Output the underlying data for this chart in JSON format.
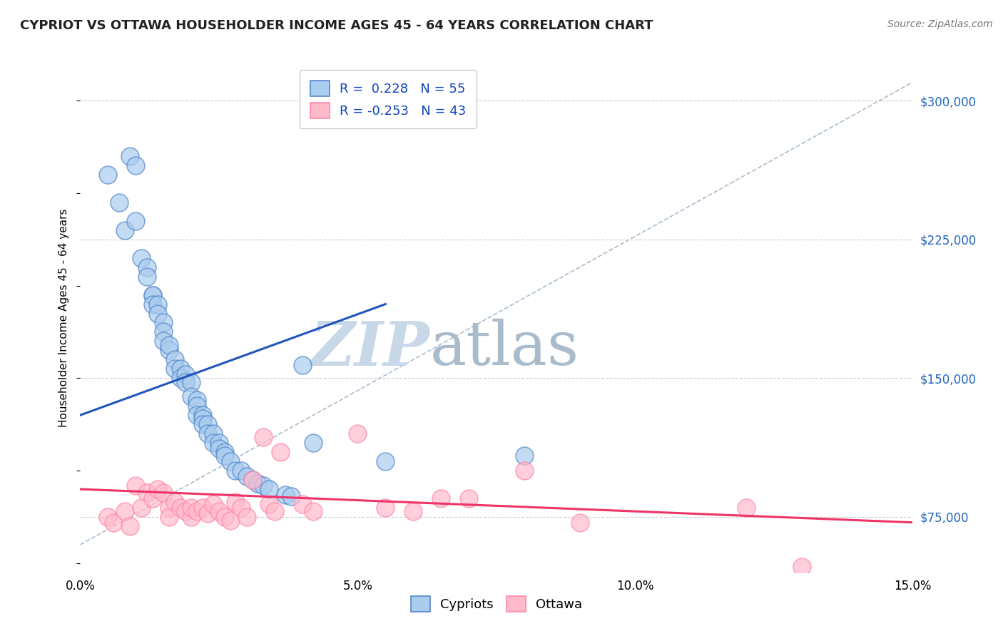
{
  "title": "CYPRIOT VS OTTAWA HOUSEHOLDER INCOME AGES 45 - 64 YEARS CORRELATION CHART",
  "source": "Source: ZipAtlas.com",
  "ylabel": "Householder Income Ages 45 - 64 years",
  "xmin": 0.0,
  "xmax": 0.15,
  "ymin": 45000,
  "ymax": 320000,
  "yticks": [
    75000,
    150000,
    225000,
    300000
  ],
  "ytick_labels": [
    "$75,000",
    "$150,000",
    "$225,000",
    "$300,000"
  ],
  "xticks": [
    0.0,
    0.05,
    0.1,
    0.15
  ],
  "xtick_labels": [
    "0.0%",
    "5.0%",
    "10.0%",
    "15.0%"
  ],
  "legend_r1": "R =  0.228",
  "legend_n1": "N = 55",
  "legend_r2": "R = -0.253",
  "legend_n2": "N = 43",
  "blue_face": "#AACCEE",
  "blue_edge": "#5588CC",
  "pink_face": "#FFBBCC",
  "pink_edge": "#FF88AA",
  "trend_blue": "#2255BB",
  "trend_pink": "#EE3366",
  "trend_gray": "#AABBCC",
  "watermark_zip": "ZIP",
  "watermark_atlas": "atlas",
  "watermark_color_zip": "#C8D8E8",
  "watermark_color_atlas": "#AABBCC",
  "grid_color": "#CCCCCC",
  "cypriots_x": [
    0.005,
    0.007,
    0.008,
    0.009,
    0.01,
    0.01,
    0.011,
    0.012,
    0.012,
    0.013,
    0.013,
    0.013,
    0.014,
    0.014,
    0.015,
    0.015,
    0.015,
    0.016,
    0.016,
    0.017,
    0.017,
    0.018,
    0.018,
    0.019,
    0.019,
    0.02,
    0.02,
    0.021,
    0.021,
    0.021,
    0.022,
    0.022,
    0.022,
    0.023,
    0.023,
    0.024,
    0.024,
    0.025,
    0.025,
    0.026,
    0.026,
    0.027,
    0.028,
    0.029,
    0.03,
    0.031,
    0.032,
    0.033,
    0.034,
    0.037,
    0.038,
    0.04,
    0.042,
    0.055,
    0.08
  ],
  "cypriots_y": [
    260000,
    245000,
    230000,
    270000,
    265000,
    235000,
    215000,
    210000,
    205000,
    195000,
    195000,
    190000,
    190000,
    185000,
    180000,
    175000,
    170000,
    165000,
    168000,
    160000,
    155000,
    155000,
    150000,
    152000,
    148000,
    148000,
    140000,
    138000,
    135000,
    130000,
    130000,
    128000,
    125000,
    125000,
    120000,
    120000,
    115000,
    115000,
    112000,
    110000,
    108000,
    105000,
    100000,
    100000,
    97000,
    95000,
    93000,
    92000,
    90000,
    87000,
    86000,
    157000,
    115000,
    105000,
    108000
  ],
  "ottawa_x": [
    0.005,
    0.006,
    0.008,
    0.009,
    0.01,
    0.011,
    0.012,
    0.013,
    0.014,
    0.015,
    0.016,
    0.016,
    0.017,
    0.018,
    0.019,
    0.02,
    0.02,
    0.021,
    0.022,
    0.023,
    0.024,
    0.025,
    0.026,
    0.027,
    0.028,
    0.029,
    0.03,
    0.031,
    0.033,
    0.034,
    0.035,
    0.036,
    0.04,
    0.042,
    0.05,
    0.055,
    0.06,
    0.065,
    0.07,
    0.08,
    0.09,
    0.12,
    0.13
  ],
  "ottawa_y": [
    75000,
    72000,
    78000,
    70000,
    92000,
    80000,
    88000,
    85000,
    90000,
    88000,
    80000,
    75000,
    83000,
    80000,
    78000,
    75000,
    80000,
    78000,
    80000,
    77000,
    82000,
    78000,
    75000,
    73000,
    83000,
    80000,
    75000,
    95000,
    118000,
    82000,
    78000,
    110000,
    82000,
    78000,
    120000,
    80000,
    78000,
    85000,
    85000,
    100000,
    72000,
    80000,
    48000
  ],
  "blue_trend_x": [
    0.0,
    0.055
  ],
  "blue_trend_y": [
    130000,
    190000
  ],
  "pink_trend_x": [
    0.0,
    0.15
  ],
  "pink_trend_y": [
    90000,
    72000
  ],
  "gray_trend_x": [
    0.0,
    0.15
  ],
  "gray_trend_y": [
    60000,
    310000
  ]
}
